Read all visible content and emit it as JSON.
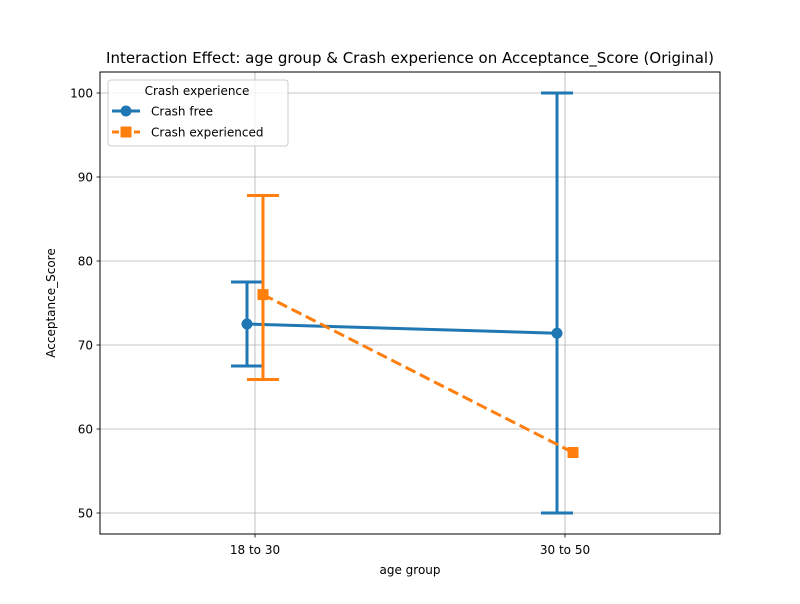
{
  "chart_data": {
    "type": "line",
    "title": "Interaction Effect: age group & Crash experience on Acceptance_Score (Original)",
    "xlabel": "age group",
    "ylabel": "Acceptance_Score",
    "categories": [
      "18 to 30",
      "30 to 50"
    ],
    "ylim": [
      47.5,
      102.5
    ],
    "yticks": [
      50,
      60,
      70,
      80,
      90,
      100
    ],
    "grid": true,
    "legend": {
      "title": "Crash experience",
      "placement": "top-left"
    },
    "series": [
      {
        "name": "Crash free",
        "color": "#1f77b4",
        "marker": "circle",
        "linestyle": "solid",
        "values": [
          72.5,
          71.4
        ],
        "ci_low": [
          67.5,
          50.0
        ],
        "ci_high": [
          77.5,
          100.0
        ]
      },
      {
        "name": "Crash experienced",
        "color": "#ff7f0e",
        "marker": "square",
        "linestyle": "dashed",
        "values": [
          76.0,
          57.2
        ],
        "ci_low": [
          65.9,
          null
        ],
        "ci_high": [
          87.8,
          null
        ]
      }
    ]
  }
}
